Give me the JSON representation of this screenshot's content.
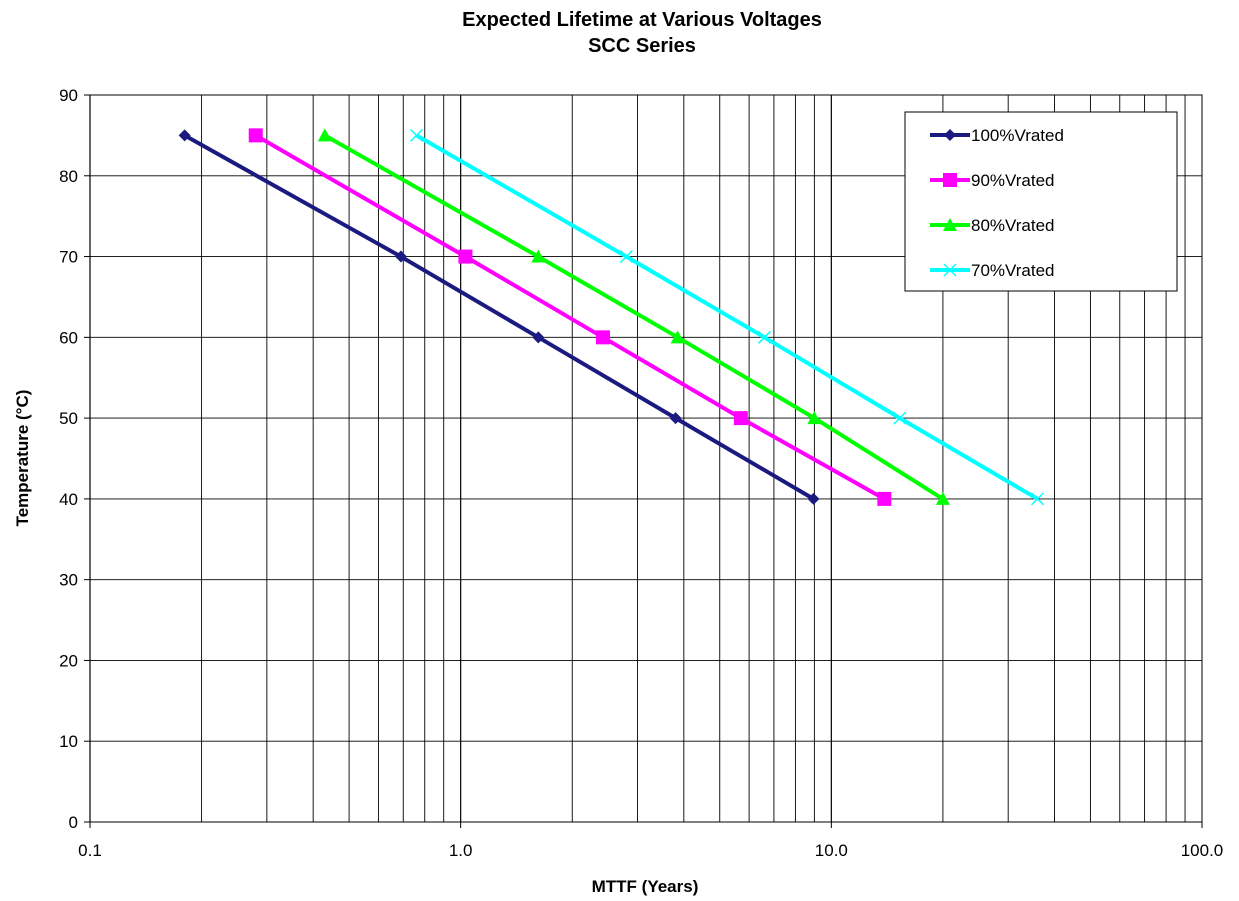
{
  "chart_data": {
    "type": "line",
    "title": "Expected Lifetime at Various Voltages",
    "subtitle": "SCC Series",
    "xlabel": "MTTF (Years)",
    "ylabel": "Temperature (°C)",
    "xscale": "log",
    "xlim": [
      0.1,
      100
    ],
    "ylim": [
      0,
      90
    ],
    "x_ticks": [
      0.1,
      1,
      10,
      100
    ],
    "x_tick_labels": [
      "0.1",
      "1.0",
      "10.0",
      "100.0"
    ],
    "y_ticks": [
      0,
      10,
      20,
      30,
      40,
      50,
      60,
      70,
      80,
      90
    ],
    "y_tick_labels": [
      "0",
      "10",
      "20",
      "30",
      "40",
      "50",
      "60",
      "70",
      "80",
      "90"
    ],
    "grid": true,
    "legend_position": "top-right",
    "series": [
      {
        "name": "100%Vrated",
        "color": "#1a1a80",
        "marker": "diamond",
        "points": [
          [
            0.18,
            85
          ],
          [
            0.69,
            70
          ],
          [
            1.62,
            60
          ],
          [
            3.8,
            50
          ],
          [
            8.95,
            40
          ]
        ]
      },
      {
        "name": "90%Vrated",
        "color": "#ff00ff",
        "marker": "square",
        "points": [
          [
            0.28,
            85
          ],
          [
            1.03,
            70
          ],
          [
            2.42,
            60
          ],
          [
            5.7,
            50
          ],
          [
            13.9,
            40
          ]
        ]
      },
      {
        "name": "80%Vrated",
        "color": "#00ff00",
        "marker": "triangle",
        "points": [
          [
            0.43,
            85
          ],
          [
            1.62,
            70
          ],
          [
            3.85,
            60
          ],
          [
            9.0,
            50
          ],
          [
            20.0,
            40
          ]
        ]
      },
      {
        "name": "70%Vrated",
        "color": "#00ffff",
        "marker": "x",
        "points": [
          [
            0.76,
            85
          ],
          [
            2.8,
            70
          ],
          [
            6.6,
            60
          ],
          [
            15.3,
            50
          ],
          [
            36.0,
            40
          ]
        ]
      }
    ]
  }
}
